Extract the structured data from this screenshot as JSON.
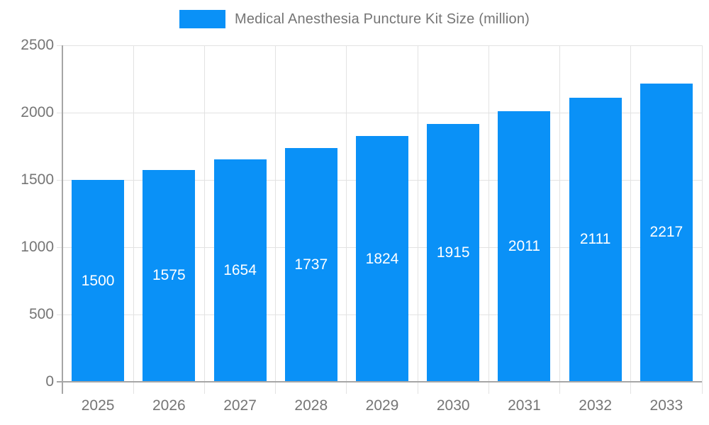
{
  "legend": {
    "label": "Medical Anesthesia Puncture Kit Size (million)"
  },
  "chart_data": {
    "type": "bar",
    "title": "Medical Anesthesia Puncture Kit Size (million)",
    "categories": [
      "2025",
      "2026",
      "2027",
      "2028",
      "2029",
      "2030",
      "2031",
      "2032",
      "2033"
    ],
    "values": [
      1500,
      1575,
      1654,
      1737,
      1824,
      1915,
      2011,
      2111,
      2217
    ],
    "xlabel": "",
    "ylabel": "",
    "ylim": [
      0,
      2500
    ],
    "yticks": [
      0,
      500,
      1000,
      1500,
      2000,
      2500
    ],
    "grid": true,
    "legend_position": "top",
    "value_labels": "inside-center"
  },
  "colors": {
    "bar": "#0a91f7",
    "value_label": "#ffffff",
    "axis_text": "#757575",
    "legend_text": "#757575",
    "gridline": "#e2e2e2",
    "axis_line": "#a6a6a6",
    "background": "#ffffff"
  }
}
